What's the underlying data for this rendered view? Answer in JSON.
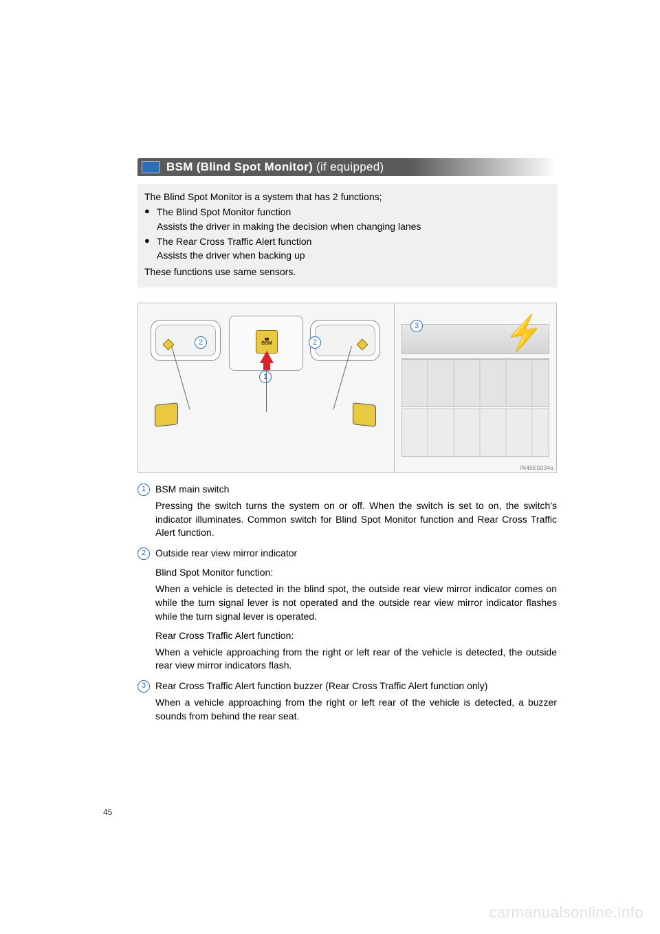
{
  "header": {
    "title_bold": "BSM (Blind Spot Monitor)",
    "title_light": " (if equipped)"
  },
  "intro": {
    "lead": "The Blind Spot Monitor is a system that has 2 functions;",
    "bullets": [
      {
        "title": "The Blind Spot Monitor function",
        "sub": "Assists the driver in making the decision when changing lanes"
      },
      {
        "title": "The Rear Cross Traffic Alert function",
        "sub": "Assists the driver when backing up"
      }
    ],
    "tail": "These functions use same sensors."
  },
  "figure": {
    "bsm_label": "BSM",
    "badge1": "1",
    "badge2": "2",
    "badge3": "3",
    "image_code": "IN45ES034a",
    "colors": {
      "highlight": "#e9c842",
      "arrow": "#d8232a",
      "blue": "#2b6fb8"
    }
  },
  "items": [
    {
      "num": "1",
      "lead": "BSM main switch",
      "paras": [
        "Pressing the switch turns the system on or off. When the switch is set to on, the switch's indicator illuminates. Common switch for Blind Spot Monitor function and Rear Cross Traffic Alert function."
      ]
    },
    {
      "num": "2",
      "lead": "Outside rear view mirror indicator",
      "paras": [
        "Blind Spot Monitor function:",
        "When a vehicle is detected in the blind spot, the outside rear view mirror indicator comes on while the turn signal lever is not operated and the outside rear view mirror indicator flashes while the turn signal lever is operated.",
        "Rear Cross Traffic Alert function:",
        "When a vehicle approaching from the right or left rear of the vehicle is detected, the outside rear view mirror indicators flash."
      ],
      "sublabel_indices": [
        0,
        2
      ]
    },
    {
      "num": "3",
      "lead": "Rear Cross Traffic Alert function buzzer (Rear Cross Traffic Alert function only)",
      "paras": [
        "When a vehicle approaching from the right or left rear of the vehicle is detected, a buzzer sounds from behind the rear seat."
      ]
    }
  ],
  "page_number": "45",
  "watermark": "carmanualsonline.info"
}
